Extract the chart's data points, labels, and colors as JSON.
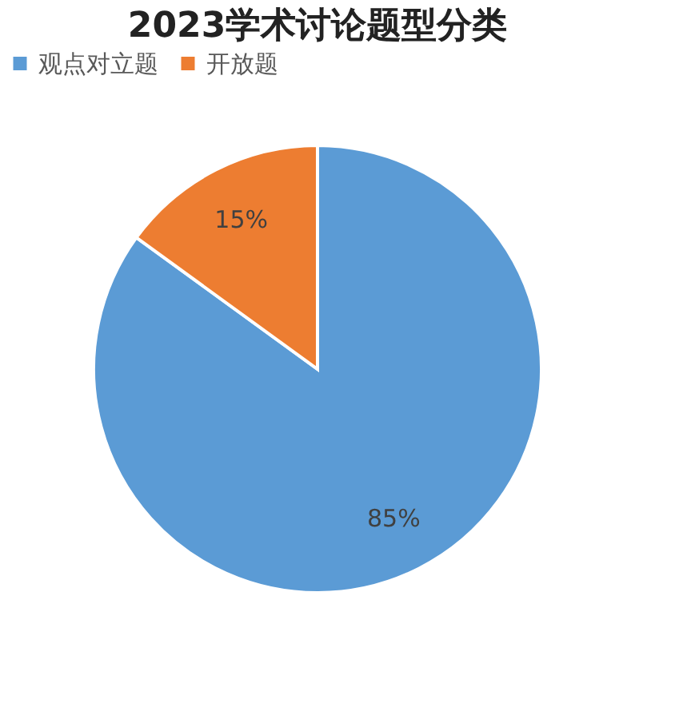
{
  "chart_data": {
    "type": "pie",
    "title": "2023学术讨论题型分类",
    "categories": [
      "观点对立题",
      "开放题"
    ],
    "values": [
      85,
      15
    ],
    "colors": [
      "#5b9bd5",
      "#ed7d31"
    ],
    "value_labels": [
      "85%",
      "15%"
    ],
    "legend": "top"
  }
}
